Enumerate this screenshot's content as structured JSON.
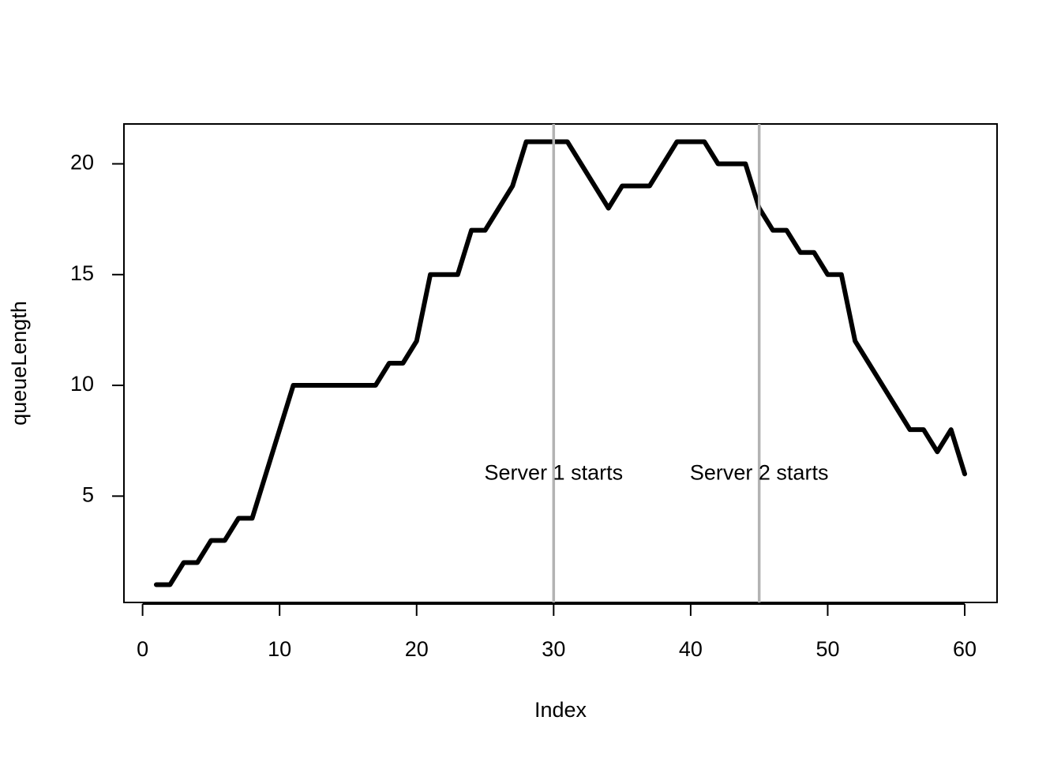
{
  "chart_data": {
    "type": "line",
    "xlabel": "Index",
    "ylabel": "queueLength",
    "x": [
      1,
      2,
      3,
      4,
      5,
      6,
      7,
      8,
      9,
      10,
      11,
      12,
      13,
      14,
      15,
      16,
      17,
      18,
      19,
      20,
      21,
      22,
      23,
      24,
      25,
      26,
      27,
      28,
      29,
      30,
      31,
      32,
      33,
      34,
      35,
      36,
      37,
      38,
      39,
      40,
      41,
      42,
      43,
      44,
      45,
      46,
      47,
      48,
      49,
      50,
      51,
      52,
      53,
      54,
      55,
      56,
      57,
      58,
      59,
      60
    ],
    "series": [
      {
        "color": "#000000",
        "values": [
          1,
          1,
          2,
          2,
          3,
          3,
          4,
          4,
          6,
          8,
          10,
          10,
          10,
          10,
          10,
          10,
          10,
          11,
          11,
          12,
          15,
          15,
          15,
          17,
          17,
          18,
          19,
          21,
          21,
          21,
          21,
          20,
          19,
          18,
          19,
          19,
          19,
          20,
          21,
          21,
          21,
          20,
          20,
          20,
          18,
          17,
          17,
          16,
          16,
          15,
          15,
          12,
          11,
          10,
          9,
          8,
          8,
          7,
          8,
          6
        ]
      }
    ],
    "vlines": [
      {
        "x": 30,
        "color": "#b3b3b3"
      },
      {
        "x": 45,
        "color": "#b3b3b3"
      }
    ],
    "annotations": [
      {
        "text": "Server 1 starts",
        "x": 30,
        "y": 6
      },
      {
        "text": "Server 2 starts",
        "x": 45,
        "y": 6
      }
    ],
    "xlim": [
      -1.36,
      62.36
    ],
    "ylim": [
      0.2,
      21.8
    ],
    "xticks": [
      0,
      10,
      20,
      30,
      40,
      50,
      60
    ],
    "yticks": [
      5,
      10,
      15,
      20
    ]
  }
}
